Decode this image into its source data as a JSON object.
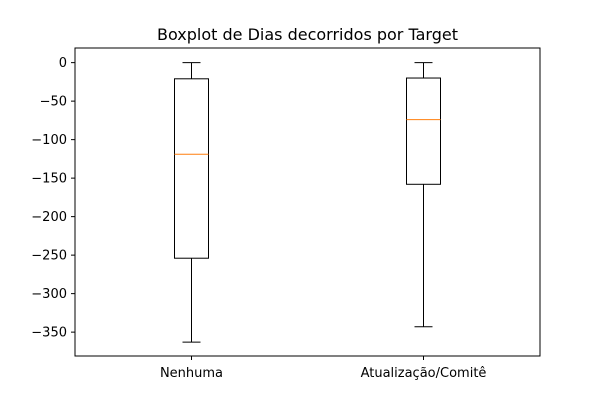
{
  "chart_data": {
    "type": "boxplot",
    "title": "Boxplot de Dias decorridos por Target",
    "xlabel": "",
    "ylabel": "",
    "categories": [
      "Nenhuma",
      "Atualização/Comitê"
    ],
    "boxes": [
      {
        "label": "Nenhuma",
        "whislo": -363,
        "q1": -254,
        "med": -119,
        "q3": -21,
        "whishi": 0
      },
      {
        "label": "Atualização/Comitê",
        "whislo": -343,
        "q1": -158,
        "med": -74,
        "q3": -20,
        "whishi": 0
      }
    ],
    "ylim": [
      -381,
      19
    ],
    "yticks": [
      0,
      -50,
      -100,
      -150,
      -200,
      -250,
      -300,
      -350
    ],
    "ytick_labels": [
      "0",
      "−50",
      "−100",
      "−150",
      "−200",
      "−250",
      "−300",
      "−350"
    ],
    "grid": false,
    "colors": {
      "box": "#000000",
      "median": "#ff7f0e",
      "whisker": "#000000"
    }
  }
}
